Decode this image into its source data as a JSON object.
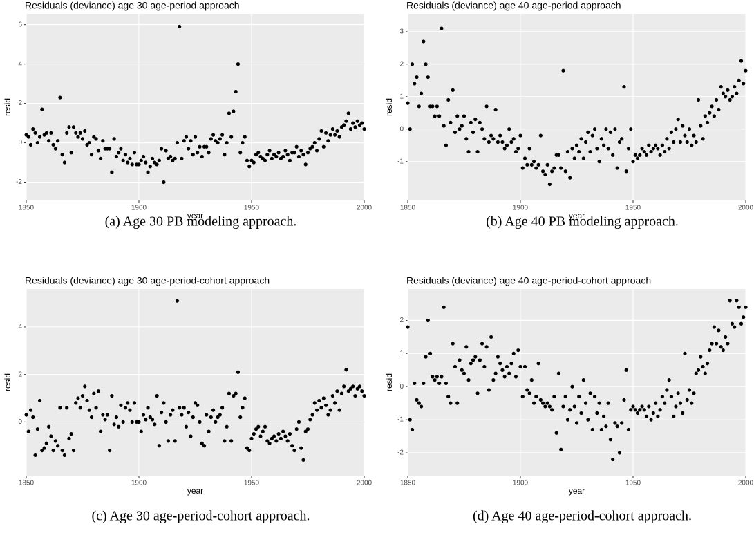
{
  "chart_data": [
    {
      "type": "scatter",
      "title": "Residuals (deviance) age 30 age-period approach",
      "xlabel": "year",
      "ylabel": "resid",
      "caption": "(a)  Age 30 PB modeling approach.",
      "color": "#000000",
      "grid": true,
      "xlim": [
        1850,
        2000
      ],
      "xticks": [
        1850,
        1900,
        1950,
        2000
      ],
      "ylim": [
        -2.93,
        6.55
      ],
      "yticks": [
        -2,
        0,
        2,
        4,
        6
      ],
      "x": [
        1850,
        1851,
        1852,
        1853,
        1854,
        1855,
        1856,
        1857,
        1858,
        1859,
        1860,
        1861,
        1862,
        1863,
        1864,
        1865,
        1866,
        1867,
        1868,
        1869,
        1870,
        1871,
        1872,
        1873,
        1874,
        1875,
        1876,
        1877,
        1878,
        1879,
        1880,
        1881,
        1882,
        1883,
        1884,
        1885,
        1886,
        1887,
        1888,
        1889,
        1890,
        1891,
        1892,
        1893,
        1894,
        1895,
        1896,
        1897,
        1898,
        1899,
        1900,
        1901,
        1902,
        1903,
        1904,
        1905,
        1906,
        1907,
        1908,
        1909,
        1910,
        1911,
        1912,
        1913,
        1914,
        1915,
        1916,
        1917,
        1918,
        1919,
        1920,
        1921,
        1922,
        1923,
        1924,
        1925,
        1926,
        1927,
        1928,
        1929,
        1930,
        1931,
        1932,
        1933,
        1934,
        1935,
        1936,
        1937,
        1938,
        1939,
        1940,
        1941,
        1942,
        1943,
        1944,
        1945,
        1946,
        1947,
        1948,
        1949,
        1950,
        1951,
        1952,
        1953,
        1954,
        1955,
        1956,
        1957,
        1958,
        1959,
        1960,
        1961,
        1962,
        1963,
        1964,
        1965,
        1966,
        1967,
        1968,
        1969,
        1970,
        1971,
        1972,
        1973,
        1974,
        1975,
        1976,
        1977,
        1978,
        1979,
        1980,
        1981,
        1982,
        1983,
        1984,
        1985,
        1986,
        1987,
        1988,
        1989,
        1990,
        1991,
        1992,
        1993,
        1994,
        1995,
        1996,
        1997,
        1998,
        1999,
        2000
      ],
      "values": [
        0.4,
        0.3,
        -0.1,
        0.7,
        0.5,
        0.0,
        0.3,
        1.7,
        0.4,
        0.5,
        0.1,
        0.5,
        -0.1,
        -0.3,
        0.1,
        2.3,
        -0.6,
        -1.0,
        0.5,
        0.8,
        -0.5,
        0.8,
        0.5,
        0.3,
        0.5,
        0.2,
        0.6,
        -0.1,
        0.0,
        -0.6,
        0.3,
        0.2,
        -0.4,
        -0.8,
        0.1,
        -0.3,
        -0.3,
        -0.3,
        -1.5,
        0.2,
        -0.7,
        -0.5,
        -0.3,
        -0.9,
        -0.6,
        -1.0,
        -0.8,
        -1.1,
        -0.5,
        -1.1,
        -1.1,
        -0.9,
        -0.7,
        -1.0,
        -1.5,
        -1.2,
        -0.8,
        -1.0,
        -1.1,
        -0.9,
        -0.3,
        -2.0,
        -0.4,
        -0.8,
        -0.7,
        -0.9,
        -0.8,
        0.0,
        5.9,
        -0.8,
        0.1,
        0.3,
        -0.3,
        0.1,
        -0.6,
        0.3,
        -0.5,
        -0.2,
        -0.7,
        -0.2,
        -0.2,
        -0.5,
        0.2,
        0.4,
        0.1,
        0.0,
        0.2,
        0.4,
        -0.6,
        0.0,
        1.5,
        0.3,
        1.6,
        2.6,
        4.0,
        -0.5,
        0.0,
        0.3,
        -0.9,
        -1.2,
        -0.9,
        -1.0,
        -0.6,
        -0.5,
        -0.7,
        -0.8,
        -0.9,
        -0.6,
        -0.4,
        -0.8,
        -0.6,
        -0.7,
        -0.5,
        -0.8,
        -0.7,
        -0.4,
        -0.6,
        -0.9,
        -0.5,
        -0.5,
        -0.2,
        -0.7,
        -0.4,
        -0.6,
        -1.1,
        -0.5,
        -0.3,
        -0.2,
        0.0,
        -0.4,
        0.2,
        0.6,
        -0.2,
        0.5,
        0.1,
        0.4,
        0.7,
        0.4,
        0.6,
        0.3,
        0.8,
        0.9,
        1.1,
        1.5,
        0.7,
        1.0,
        0.8,
        1.1,
        0.9,
        1.0,
        0.7
      ]
    },
    {
      "type": "scatter",
      "title": "Residuals (deviance) age 40 age-period approach",
      "xlabel": "year",
      "ylabel": "resid",
      "caption": "(b)  Age 40 PB modeling approach.",
      "color": "#000000",
      "grid": true,
      "xlim": [
        1850,
        2000
      ],
      "xticks": [
        1850,
        1900,
        1950,
        2000
      ],
      "ylim": [
        -2.2,
        3.55
      ],
      "yticks": [
        -1,
        0,
        1,
        2,
        3
      ],
      "x": [
        1850,
        1851,
        1852,
        1853,
        1854,
        1855,
        1856,
        1857,
        1858,
        1859,
        1860,
        1861,
        1862,
        1863,
        1864,
        1865,
        1866,
        1867,
        1868,
        1869,
        1870,
        1871,
        1872,
        1873,
        1874,
        1875,
        1876,
        1877,
        1878,
        1879,
        1880,
        1881,
        1882,
        1883,
        1884,
        1885,
        1886,
        1887,
        1888,
        1889,
        1890,
        1891,
        1892,
        1893,
        1894,
        1895,
        1896,
        1897,
        1898,
        1899,
        1900,
        1901,
        1902,
        1903,
        1904,
        1905,
        1906,
        1907,
        1908,
        1909,
        1910,
        1911,
        1912,
        1913,
        1914,
        1915,
        1916,
        1917,
        1918,
        1919,
        1920,
        1921,
        1922,
        1923,
        1924,
        1925,
        1926,
        1927,
        1928,
        1929,
        1930,
        1931,
        1932,
        1933,
        1934,
        1935,
        1936,
        1937,
        1938,
        1939,
        1940,
        1941,
        1942,
        1943,
        1944,
        1945,
        1946,
        1947,
        1948,
        1949,
        1950,
        1951,
        1952,
        1953,
        1954,
        1955,
        1956,
        1957,
        1958,
        1959,
        1960,
        1961,
        1962,
        1963,
        1964,
        1965,
        1966,
        1967,
        1968,
        1969,
        1970,
        1971,
        1972,
        1973,
        1974,
        1975,
        1976,
        1977,
        1978,
        1979,
        1980,
        1981,
        1982,
        1983,
        1984,
        1985,
        1986,
        1987,
        1988,
        1989,
        1990,
        1991,
        1992,
        1993,
        1994,
        1995,
        1996,
        1997,
        1998,
        1999,
        2000
      ],
      "values": [
        0.8,
        0.0,
        2.0,
        1.4,
        1.6,
        0.7,
        1.1,
        2.7,
        2.0,
        1.6,
        0.7,
        0.7,
        0.4,
        0.7,
        0.4,
        3.1,
        0.1,
        -0.5,
        0.9,
        0.2,
        1.2,
        -0.1,
        0.4,
        0.0,
        0.1,
        0.4,
        -0.3,
        -0.7,
        0.2,
        -0.1,
        0.3,
        -0.7,
        0.2,
        0.0,
        -0.3,
        0.7,
        -0.4,
        -0.2,
        -0.3,
        0.6,
        -0.4,
        -0.2,
        -0.4,
        -0.6,
        -0.5,
        0.0,
        -0.4,
        -0.3,
        -0.7,
        -0.6,
        -0.2,
        -1.2,
        -0.9,
        -1.1,
        -0.6,
        -1.1,
        -1.0,
        -1.2,
        -1.1,
        -0.2,
        -1.3,
        -1.4,
        -1.1,
        -1.7,
        -1.3,
        -1.2,
        -0.8,
        -0.8,
        -1.2,
        1.8,
        -1.3,
        -0.7,
        -1.5,
        -0.6,
        -0.9,
        -0.5,
        -0.7,
        -0.3,
        -0.9,
        -0.4,
        -0.1,
        -0.7,
        -0.2,
        0.0,
        -0.6,
        -1.0,
        -0.3,
        -0.5,
        0.0,
        -0.6,
        -0.1,
        -0.8,
        0.0,
        -1.2,
        -0.4,
        -0.3,
        1.3,
        -1.3,
        -0.6,
        0.0,
        -1.0,
        -0.8,
        -0.9,
        -0.8,
        -0.6,
        -0.7,
        -0.8,
        -0.5,
        -0.7,
        -0.6,
        -0.5,
        -0.6,
        -0.8,
        -0.5,
        -0.7,
        -0.3,
        -0.6,
        -0.1,
        -0.4,
        0.0,
        0.3,
        -0.4,
        0.1,
        -0.2,
        -0.4,
        0.0,
        -0.5,
        -0.2,
        -0.4,
        0.9,
        0.1,
        -0.3,
        0.4,
        0.2,
        0.5,
        0.7,
        0.4,
        0.9,
        0.6,
        1.3,
        1.1,
        1.0,
        1.2,
        0.9,
        1.0,
        1.3,
        1.1,
        1.5,
        2.1,
        1.4,
        1.8
      ]
    },
    {
      "type": "scatter",
      "title": "Residuals (deviance) age 30 age-period-cohort approach",
      "xlabel": "year",
      "ylabel": "resid",
      "caption": "(c)  Age 30 age-period-cohort approach.",
      "color": "#000000",
      "grid": true,
      "xlim": [
        1850,
        2000
      ],
      "xticks": [
        1850,
        1900,
        1950,
        2000
      ],
      "ylim": [
        -2.26,
        5.6
      ],
      "yticks": [
        0,
        2,
        4
      ],
      "x": [
        1850,
        1851,
        1852,
        1853,
        1854,
        1855,
        1856,
        1857,
        1858,
        1859,
        1860,
        1861,
        1862,
        1863,
        1864,
        1865,
        1866,
        1867,
        1868,
        1869,
        1870,
        1871,
        1872,
        1873,
        1874,
        1875,
        1876,
        1877,
        1878,
        1879,
        1880,
        1881,
        1882,
        1883,
        1884,
        1885,
        1886,
        1887,
        1888,
        1889,
        1890,
        1891,
        1892,
        1893,
        1894,
        1895,
        1896,
        1897,
        1898,
        1899,
        1900,
        1901,
        1902,
        1903,
        1904,
        1905,
        1906,
        1907,
        1908,
        1909,
        1910,
        1911,
        1912,
        1913,
        1914,
        1915,
        1916,
        1917,
        1918,
        1919,
        1920,
        1921,
        1922,
        1923,
        1924,
        1925,
        1926,
        1927,
        1928,
        1929,
        1930,
        1931,
        1932,
        1933,
        1934,
        1935,
        1936,
        1937,
        1938,
        1939,
        1940,
        1941,
        1942,
        1943,
        1944,
        1945,
        1946,
        1947,
        1948,
        1949,
        1950,
        1951,
        1952,
        1953,
        1954,
        1955,
        1956,
        1957,
        1958,
        1959,
        1960,
        1961,
        1962,
        1963,
        1964,
        1965,
        1966,
        1967,
        1968,
        1969,
        1970,
        1971,
        1972,
        1973,
        1974,
        1975,
        1976,
        1977,
        1978,
        1979,
        1980,
        1981,
        1982,
        1983,
        1984,
        1985,
        1986,
        1987,
        1988,
        1989,
        1990,
        1991,
        1992,
        1993,
        1994,
        1995,
        1996,
        1997,
        1998,
        1999,
        2000
      ],
      "values": [
        0.3,
        -0.4,
        0.5,
        0.2,
        -1.4,
        -0.3,
        0.9,
        -1.2,
        -1.1,
        -0.9,
        -0.2,
        -0.6,
        -1.2,
        -0.8,
        -1.0,
        0.6,
        -1.2,
        -1.4,
        0.6,
        -0.7,
        -0.5,
        -1.2,
        0.8,
        1.0,
        0.6,
        1.1,
        1.5,
        0.9,
        0.5,
        0.2,
        1.2,
        0.6,
        1.3,
        -0.4,
        0.3,
        0.1,
        0.3,
        -1.2,
        1.1,
        -0.1,
        0.2,
        -0.2,
        0.7,
        0.0,
        0.6,
        0.8,
        0.5,
        0.0,
        0.8,
        0.0,
        0.0,
        -0.4,
        0.3,
        0.1,
        0.6,
        0.2,
        0.1,
        -0.1,
        1.1,
        -1.0,
        0.4,
        0.8,
        0.0,
        -0.8,
        0.3,
        0.5,
        -0.8,
        5.1,
        0.6,
        0.3,
        0.6,
        -0.2,
        0.4,
        -0.6,
        0.2,
        0.8,
        0.7,
        0.0,
        -0.9,
        -1.0,
        0.3,
        -0.4,
        0.2,
        0.5,
        0.0,
        0.2,
        0.3,
        0.6,
        -0.8,
        -0.2,
        1.2,
        -0.8,
        1.1,
        1.2,
        2.1,
        0.2,
        0.6,
        1.0,
        -1.1,
        -1.2,
        -0.7,
        -0.5,
        -0.3,
        -0.2,
        -0.6,
        -0.4,
        -0.2,
        -0.8,
        -0.9,
        -0.7,
        -0.6,
        -0.8,
        -0.5,
        -0.7,
        -0.4,
        -0.6,
        -0.8,
        -0.5,
        -1.0,
        -1.2,
        -0.3,
        0.0,
        -1.1,
        -1.6,
        -0.4,
        -0.3,
        0.1,
        0.3,
        0.8,
        0.5,
        0.9,
        0.6,
        1.0,
        0.7,
        0.3,
        0.5,
        1.1,
        0.8,
        1.3,
        0.5,
        1.2,
        1.5,
        2.2,
        1.3,
        1.4,
        1.5,
        1.1,
        1.4,
        1.5,
        1.3,
        1.1
      ]
    },
    {
      "type": "scatter",
      "title": "Residuals (deviance) age 40 age-period-cohort approach",
      "xlabel": "year",
      "ylabel": "resid",
      "caption": "(d)  Age 40 age-period-cohort approach.",
      "color": "#000000",
      "grid": true,
      "xlim": [
        1850,
        2000
      ],
      "xticks": [
        1850,
        1900,
        1950,
        2000
      ],
      "ylim": [
        -2.69,
        2.95
      ],
      "yticks": [
        -2,
        -1,
        0,
        1,
        2
      ],
      "x": [
        1850,
        1851,
        1852,
        1853,
        1854,
        1855,
        1856,
        1857,
        1858,
        1859,
        1860,
        1861,
        1862,
        1863,
        1864,
        1865,
        1866,
        1867,
        1868,
        1869,
        1870,
        1871,
        1872,
        1873,
        1874,
        1875,
        1876,
        1877,
        1878,
        1879,
        1880,
        1881,
        1882,
        1883,
        1884,
        1885,
        1886,
        1887,
        1888,
        1889,
        1890,
        1891,
        1892,
        1893,
        1894,
        1895,
        1896,
        1897,
        1898,
        1899,
        1900,
        1901,
        1902,
        1903,
        1904,
        1905,
        1906,
        1907,
        1908,
        1909,
        1910,
        1911,
        1912,
        1913,
        1914,
        1915,
        1916,
        1917,
        1918,
        1919,
        1920,
        1921,
        1922,
        1923,
        1924,
        1925,
        1926,
        1927,
        1928,
        1929,
        1930,
        1931,
        1932,
        1933,
        1934,
        1935,
        1936,
        1937,
        1938,
        1939,
        1940,
        1941,
        1942,
        1943,
        1944,
        1945,
        1946,
        1947,
        1948,
        1949,
        1950,
        1951,
        1952,
        1953,
        1954,
        1955,
        1956,
        1957,
        1958,
        1959,
        1960,
        1961,
        1962,
        1963,
        1964,
        1965,
        1966,
        1967,
        1968,
        1969,
        1970,
        1971,
        1972,
        1973,
        1974,
        1975,
        1976,
        1977,
        1978,
        1979,
        1980,
        1981,
        1982,
        1983,
        1984,
        1985,
        1986,
        1987,
        1988,
        1989,
        1990,
        1991,
        1992,
        1993,
        1994,
        1995,
        1996,
        1997,
        1998,
        1999,
        2000
      ],
      "values": [
        1.8,
        -1.0,
        -1.3,
        0.1,
        -0.4,
        -0.5,
        -0.6,
        0.1,
        0.9,
        2.0,
        1.0,
        0.3,
        0.2,
        0.3,
        0.1,
        0.3,
        2.4,
        0.1,
        -0.3,
        -0.5,
        1.3,
        0.6,
        -0.5,
        0.8,
        0.5,
        0.4,
        1.2,
        0.2,
        0.7,
        0.8,
        0.9,
        -0.2,
        0.8,
        1.3,
        0.6,
        1.2,
        -0.1,
        1.5,
        0.2,
        0.4,
        0.9,
        0.7,
        0.5,
        0.3,
        0.6,
        0.4,
        0.7,
        1.0,
        0.3,
        1.1,
        0.6,
        -0.3,
        0.6,
        -0.1,
        -0.2,
        0.2,
        -0.5,
        -0.3,
        0.7,
        -0.4,
        -0.5,
        -0.6,
        -0.5,
        -0.6,
        -0.7,
        -0.3,
        -1.4,
        0.4,
        -1.9,
        -0.6,
        -0.3,
        -1.0,
        -0.7,
        0.0,
        -0.6,
        -1.1,
        -0.3,
        -0.8,
        0.2,
        -0.5,
        -1.0,
        -0.2,
        -1.3,
        -0.3,
        -0.8,
        -0.5,
        -1.3,
        -0.9,
        -1.2,
        -0.5,
        -1.6,
        -2.2,
        -1.1,
        -1.2,
        -2.0,
        -1.1,
        -0.4,
        0.5,
        -1.3,
        -0.7,
        -0.6,
        -0.7,
        -0.8,
        -0.7,
        -0.6,
        -0.7,
        -0.9,
        -0.6,
        -1.0,
        -0.8,
        -0.5,
        -0.9,
        -0.7,
        -0.3,
        -0.5,
        -0.1,
        0.2,
        -0.3,
        -0.9,
        -0.6,
        -0.2,
        -0.5,
        -0.8,
        1.0,
        -0.4,
        -0.1,
        -0.5,
        -0.2,
        0.4,
        0.5,
        0.9,
        0.6,
        0.4,
        0.7,
        1.1,
        1.3,
        1.8,
        1.3,
        1.7,
        1.2,
        1.1,
        1.5,
        1.3,
        2.6,
        1.9,
        1.8,
        2.6,
        2.4,
        1.9,
        2.1,
        2.4
      ]
    }
  ]
}
